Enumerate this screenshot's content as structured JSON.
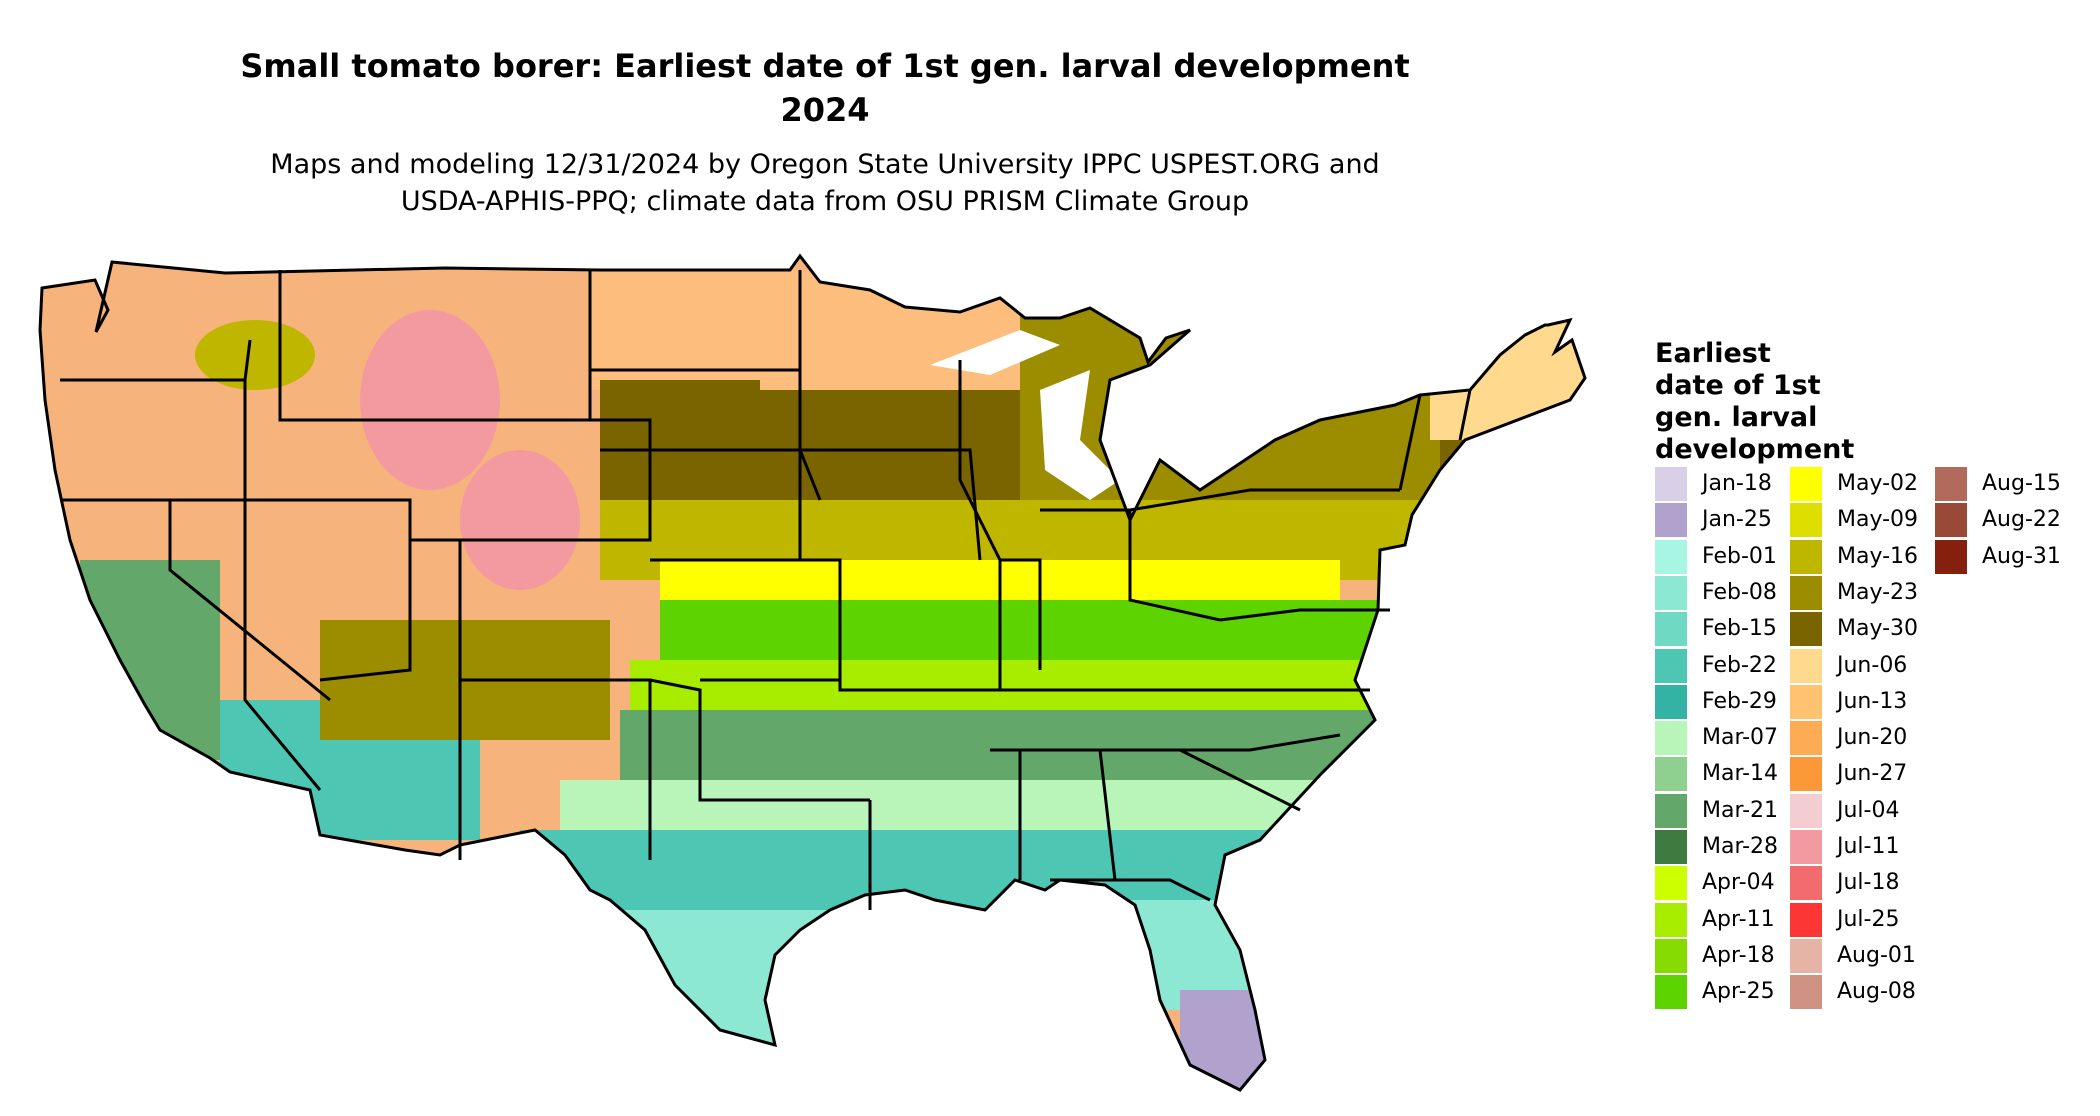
{
  "title_line1": "Small tomato borer: Earliest date of 1st gen. larval development",
  "title_line2": "2024",
  "subtitle_line1": "Maps and modeling 12/31/2024 by Oregon State University IPPC USPEST.ORG and",
  "subtitle_line2": "USDA-APHIS-PPQ; climate data from OSU PRISM Climate Group",
  "legend": {
    "title_lines": [
      "Earliest",
      "date of 1st",
      "gen. larval",
      "development"
    ],
    "items": [
      {
        "label": "Jan-18",
        "color": "#d9d0e8"
      },
      {
        "label": "Jan-25",
        "color": "#b0a2cc"
      },
      {
        "label": "Feb-01",
        "color": "#a9f5e4"
      },
      {
        "label": "Feb-08",
        "color": "#8ce8d3"
      },
      {
        "label": "Feb-15",
        "color": "#6fd9c4"
      },
      {
        "label": "Feb-22",
        "color": "#4ec6b4"
      },
      {
        "label": "Feb-29",
        "color": "#33b3a3"
      },
      {
        "label": "Mar-07",
        "color": "#b9f5b9"
      },
      {
        "label": "Mar-14",
        "color": "#8fcf8f"
      },
      {
        "label": "Mar-21",
        "color": "#63a76a"
      },
      {
        "label": "Mar-28",
        "color": "#3f7a40"
      },
      {
        "label": "Apr-04",
        "color": "#ccff00"
      },
      {
        "label": "Apr-11",
        "color": "#a8ec00"
      },
      {
        "label": "Apr-18",
        "color": "#86dc00"
      },
      {
        "label": "Apr-25",
        "color": "#5dd400"
      },
      {
        "label": "May-02",
        "color": "#ffff00"
      },
      {
        "label": "May-09",
        "color": "#dede00"
      },
      {
        "label": "May-16",
        "color": "#bfb600"
      },
      {
        "label": "May-23",
        "color": "#9c8c00"
      },
      {
        "label": "May-30",
        "color": "#7a6400"
      },
      {
        "label": "Jun-06",
        "color": "#fed98e"
      },
      {
        "label": "Jun-13",
        "color": "#fec271"
      },
      {
        "label": "Jun-20",
        "color": "#feab56"
      },
      {
        "label": "Jun-27",
        "color": "#fd9839"
      },
      {
        "label": "Jul-04",
        "color": "#f4cdd0"
      },
      {
        "label": "Jul-11",
        "color": "#f29aa0"
      },
      {
        "label": "Jul-18",
        "color": "#f26b6e"
      },
      {
        "label": "Jul-25",
        "color": "#fc3535"
      },
      {
        "label": "Aug-01",
        "color": "#e6b4a6"
      },
      {
        "label": "Aug-08",
        "color": "#cf9283"
      },
      {
        "label": "Aug-15",
        "color": "#b26a5c"
      },
      {
        "label": "Aug-22",
        "color": "#984a36"
      },
      {
        "label": "Aug-31",
        "color": "#85200e"
      }
    ]
  },
  "map": {
    "colors": {
      "outline": "#000000",
      "mountain_west": "#f6b37c",
      "plains_north": "#fdbd7c",
      "northern_tier": "#7a6400",
      "corn_belt": "#bfb600",
      "ohio_valley": "#ffff00",
      "midsouth": "#a8ec00",
      "mid_latitude": "#5dd400",
      "deep_south": "#63a76a",
      "gulf": "#b9f5b9",
      "gulf_coast": "#4ec6b4",
      "florida": "#8ce8d3",
      "south_florida": "#b0a2cc",
      "desert": "#4ec6b4",
      "high_peaks": "#f29aa0",
      "great_lakes": "#ffffff"
    }
  }
}
